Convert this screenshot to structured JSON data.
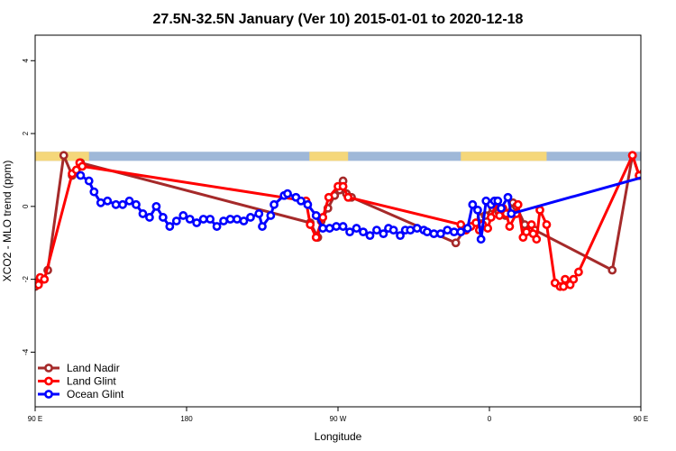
{
  "chart_data": {
    "type": "line",
    "title": "27.5N-32.5N January (Ver 10)   2015-01-01 to 2020-12-18",
    "xlabel": "Longitude",
    "ylabel": "XCO2 - MLO trend (ppm)",
    "xlim": [
      90,
      450
    ],
    "ylim": [
      -5.5,
      4.7
    ],
    "x_ticks": [
      {
        "value": 90,
        "label": "90 E"
      },
      {
        "value": 180,
        "label": "180"
      },
      {
        "value": 270,
        "label": "90 W"
      },
      {
        "value": 360,
        "label": "0"
      },
      {
        "value": 450,
        "label": "90 E"
      },
      {
        "value": 540,
        "label": "180"
      }
    ],
    "y_ticks": [
      {
        "value": -4,
        "label": "-4"
      },
      {
        "value": -2,
        "label": "-2"
      },
      {
        "value": 0,
        "label": "0"
      },
      {
        "value": 2,
        "label": "2"
      },
      {
        "value": 4,
        "label": "4"
      }
    ],
    "grid": false,
    "legend_position": "bottom-left",
    "land_ocean_band": {
      "ymin": 1.25,
      "ymax": 1.5,
      "ocean_color": "#9fb8d8",
      "land_color": "#f5d77a",
      "land_ranges": [
        [
          90,
          122
        ],
        [
          253,
          276
        ],
        [
          343,
          394
        ],
        [
          450,
          482
        ],
        [
          543,
          564
        ]
      ]
    },
    "series": [
      {
        "name": "Land Nadir",
        "color": "#a52a2a",
        "points": [
          [
            90,
            -2.2
          ],
          [
            92.5,
            -2.05
          ],
          [
            95,
            -2.0
          ],
          [
            97.5,
            -1.75
          ],
          [
            107,
            1.4
          ],
          [
            112,
            0.85
          ],
          [
            117,
            1.2
          ],
          [
            253.5,
            -0.45
          ],
          [
            258,
            -0.85
          ],
          [
            260,
            -0.4
          ],
          [
            264,
            -0.05
          ],
          [
            268,
            0.3
          ],
          [
            271,
            0.45
          ],
          [
            273,
            0.7
          ],
          [
            275,
            0.35
          ],
          [
            276.5,
            0.25
          ],
          [
            278,
            0.25
          ],
          [
            340,
            -1.0
          ],
          [
            345,
            -0.65
          ],
          [
            355,
            -0.3
          ],
          [
            357.5,
            -0.25
          ],
          [
            362,
            -0.05
          ],
          [
            364.5,
            0.15
          ],
          [
            365.5,
            -0.15
          ],
          [
            369.5,
            -0.25
          ],
          [
            374,
            0.1
          ],
          [
            376,
            0.0
          ],
          [
            381,
            -0.5
          ],
          [
            387,
            -0.65
          ],
          [
            433,
            -1.75
          ],
          [
            445,
            1.4
          ],
          [
            449,
            0.85
          ],
          [
            452.5,
            1.2
          ],
          [
            454,
            1.15
          ]
        ]
      },
      {
        "name": "Land Glint",
        "color": "#ff0000",
        "points": [
          [
            90,
            -2.1
          ],
          [
            92,
            -2.15
          ],
          [
            93,
            -1.95
          ],
          [
            95.5,
            -2.0
          ],
          [
            112,
            0.9
          ],
          [
            114.5,
            1.0
          ],
          [
            116.5,
            1.2
          ],
          [
            118,
            1.1
          ],
          [
            251,
            0.15
          ],
          [
            253.5,
            -0.5
          ],
          [
            257,
            -0.85
          ],
          [
            261,
            -0.3
          ],
          [
            264.5,
            0.25
          ],
          [
            270,
            0.55
          ],
          [
            273,
            0.55
          ],
          [
            276,
            0.25
          ],
          [
            343,
            -0.5
          ],
          [
            346,
            -0.65
          ],
          [
            349,
            -0.55
          ],
          [
            352,
            -0.45
          ],
          [
            354,
            -0.65
          ],
          [
            356,
            -0.5
          ],
          [
            359,
            -0.6
          ],
          [
            361,
            -0.3
          ],
          [
            364,
            0.1
          ],
          [
            366,
            -0.25
          ],
          [
            368,
            -0.05
          ],
          [
            370,
            -0.2
          ],
          [
            372,
            -0.55
          ],
          [
            376,
            -0.2
          ],
          [
            377,
            0.05
          ],
          [
            380,
            -0.85
          ],
          [
            382,
            -0.7
          ],
          [
            385,
            -0.5
          ],
          [
            386,
            -0.75
          ],
          [
            388,
            -0.9
          ],
          [
            390,
            -0.1
          ],
          [
            394,
            -0.5
          ],
          [
            399,
            -2.1
          ],
          [
            402,
            -2.2
          ],
          [
            404,
            -2.2
          ],
          [
            405,
            -2.0
          ],
          [
            408,
            -2.15
          ],
          [
            410,
            -2.0
          ],
          [
            413,
            -1.8
          ],
          [
            445,
            1.4
          ],
          [
            449,
            0.85
          ],
          [
            452.5,
            1.15
          ],
          [
            454,
            1.05
          ]
        ]
      },
      {
        "name": "Ocean Glint",
        "color": "#0000ff",
        "points": [
          [
            117,
            0.85
          ],
          [
            122,
            0.7
          ],
          [
            125,
            0.4
          ],
          [
            129,
            0.1
          ],
          [
            133,
            0.15
          ],
          [
            138,
            0.05
          ],
          [
            142,
            0.05
          ],
          [
            146,
            0.15
          ],
          [
            150,
            0.05
          ],
          [
            154,
            -0.2
          ],
          [
            158,
            -0.3
          ],
          [
            162,
            0.0
          ],
          [
            166,
            -0.3
          ],
          [
            170,
            -0.55
          ],
          [
            174,
            -0.4
          ],
          [
            178,
            -0.25
          ],
          [
            182,
            -0.35
          ],
          [
            186,
            -0.45
          ],
          [
            190,
            -0.35
          ],
          [
            194,
            -0.35
          ],
          [
            198,
            -0.55
          ],
          [
            202,
            -0.4
          ],
          [
            206,
            -0.35
          ],
          [
            210,
            -0.35
          ],
          [
            214,
            -0.4
          ],
          [
            218,
            -0.3
          ],
          [
            223,
            -0.2
          ],
          [
            225,
            -0.55
          ],
          [
            230,
            -0.25
          ],
          [
            232,
            0.05
          ],
          [
            238,
            0.3
          ],
          [
            240,
            0.35
          ],
          [
            245,
            0.25
          ],
          [
            248,
            0.15
          ],
          [
            252,
            0.05
          ],
          [
            257,
            -0.25
          ],
          [
            261,
            -0.6
          ],
          [
            265,
            -0.6
          ],
          [
            269,
            -0.55
          ],
          [
            273,
            -0.55
          ],
          [
            277,
            -0.7
          ],
          [
            281,
            -0.6
          ],
          [
            285,
            -0.7
          ],
          [
            289,
            -0.8
          ],
          [
            293,
            -0.65
          ],
          [
            297,
            -0.75
          ],
          [
            300,
            -0.6
          ],
          [
            303,
            -0.65
          ],
          [
            307,
            -0.8
          ],
          [
            310,
            -0.65
          ],
          [
            313,
            -0.65
          ],
          [
            317,
            -0.6
          ],
          [
            321,
            -0.65
          ],
          [
            323,
            -0.7
          ],
          [
            327,
            -0.75
          ],
          [
            331,
            -0.75
          ],
          [
            335,
            -0.65
          ],
          [
            339,
            -0.7
          ],
          [
            343,
            -0.7
          ],
          [
            347,
            -0.6
          ],
          [
            350,
            0.05
          ],
          [
            353,
            -0.1
          ],
          [
            355,
            -0.9
          ],
          [
            358,
            0.15
          ],
          [
            361,
            0.05
          ],
          [
            363,
            0.15
          ],
          [
            365,
            0.15
          ],
          [
            367,
            -0.05
          ],
          [
            371,
            0.25
          ],
          [
            373,
            -0.2
          ],
          [
            455,
            0.85
          ],
          [
            459,
            0.7
          ],
          [
            463,
            0.4
          ],
          [
            467,
            0.1
          ],
          [
            471,
            0.15
          ],
          [
            475,
            0.05
          ],
          [
            479,
            0.05
          ],
          [
            483,
            0.15
          ],
          [
            487,
            0.05
          ],
          [
            491,
            -0.2
          ],
          [
            495,
            -0.3
          ],
          [
            498,
            0.0
          ]
        ]
      }
    ]
  }
}
